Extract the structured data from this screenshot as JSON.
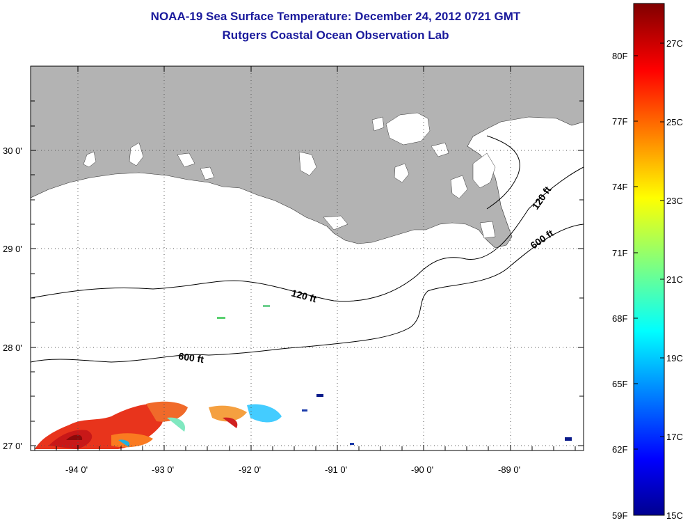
{
  "title": {
    "line1": "NOAA-19 Sea Surface Temperature:  December 24, 2012 0721 GMT",
    "line2": "Rutgers Coastal Ocean Observation Lab"
  },
  "map": {
    "land_color": "#b3b3b3",
    "water_color": "#ffffff",
    "latitude_labels": [
      "30 0'",
      "29 0'",
      "28 0'",
      "27 0'"
    ],
    "longitude_labels": [
      "-94 0'",
      "-93 0'",
      "-92 0'",
      "-91 0'",
      "-90 0'",
      "-89 0'"
    ],
    "isobath_labels": {
      "shelf_120_west": "120 ft",
      "shelf_600_west": "600 ft",
      "shelf_120_east": "120 ft",
      "shelf_600_east": "600 ft"
    }
  },
  "colorbar": {
    "fahrenheit_labels": [
      "80F",
      "77F",
      "74F",
      "71F",
      "68F",
      "65F",
      "62F",
      "59F"
    ],
    "celsius_labels": [
      "27C",
      "25C",
      "23C",
      "21C",
      "19C",
      "17C",
      "15C"
    ],
    "range_celsius": [
      15,
      28
    ],
    "colormap": "jet",
    "colors": [
      "#00008f",
      "#0000ff",
      "#00ffff",
      "#ffff00",
      "#ff0000",
      "#800000"
    ]
  }
}
